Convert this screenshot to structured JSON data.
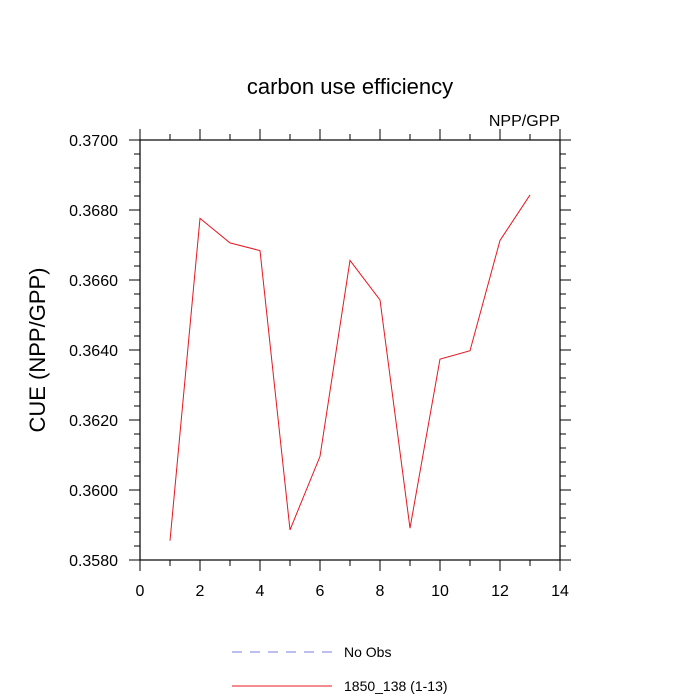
{
  "chart_data": {
    "type": "line",
    "title": "carbon use efficiency",
    "subtitle": "NPP/GPP",
    "xlabel": "",
    "ylabel": "CUE  (NPP/GPP)",
    "xlim": [
      0,
      14
    ],
    "ylim": [
      0.358,
      0.37
    ],
    "x_ticks": [
      0,
      2,
      4,
      6,
      8,
      10,
      12,
      14
    ],
    "x_tick_labels": [
      "0",
      "2",
      "4",
      "6",
      "8",
      "10",
      "12",
      "14"
    ],
    "y_ticks": [
      0.358,
      0.36,
      0.362,
      0.364,
      0.366,
      0.368,
      0.37
    ],
    "y_tick_labels": [
      "0.3580",
      "0.3600",
      "0.3620",
      "0.3640",
      "0.3660",
      "0.3680",
      "0.3700"
    ],
    "grid": false,
    "legend_position": "bottom",
    "series": [
      {
        "name": "1850_138 (1-13)",
        "color": "#e8171f",
        "style": "solid",
        "x": [
          1,
          2,
          3,
          4,
          5,
          6,
          7,
          8,
          9,
          10,
          11,
          12,
          13
        ],
        "values": [
          0.35855,
          0.36776,
          0.36706,
          0.36684,
          0.35886,
          0.36096,
          0.36656,
          0.36543,
          0.35891,
          0.36374,
          0.36398,
          0.36713,
          0.36843
        ]
      }
    ],
    "legend": [
      {
        "label": "No Obs",
        "color": "#7b7be0",
        "style": "dashed"
      },
      {
        "label": "1850_138 (1-13)",
        "color": "#e8171f",
        "style": "solid"
      }
    ]
  }
}
